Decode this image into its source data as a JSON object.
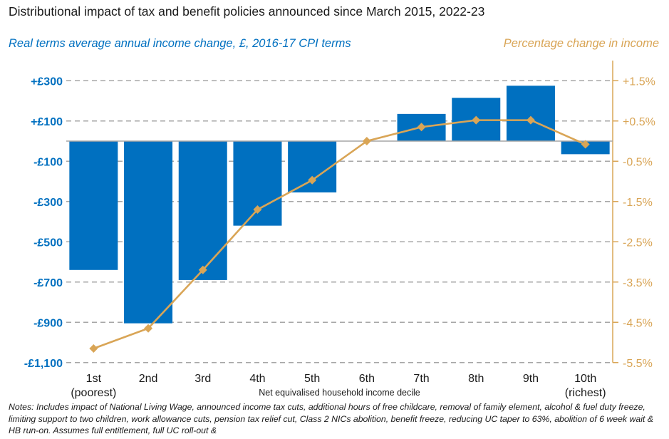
{
  "title": "Distributional impact of tax and benefit policies announced since March 2015, 2022-23",
  "left_subtitle": "Real terms average annual income change, £, 2016-17 CPI terms",
  "right_subtitle": "Percentage change in income",
  "notes": "Notes: Includes impact of National Living Wage, announced income tax cuts, additional hours of free childcare, removal of family element, alcohol & fuel duty freeze, limiting support to two children, work allowance cuts, pension tax relief cut, Class 2 NICs abolition, benefit freeze, reducing UC taper to 63%, abolition of 6 week wait & HB run-on. Assumes full entitlement, full UC roll-out &",
  "colors": {
    "bar": "#0070c0",
    "line": "#d9a556",
    "grid": "#a6a6a6",
    "zero": "#a6a6a6",
    "text": "#1a1a1a"
  },
  "chart_data": {
    "type": "bar",
    "title": "Distributional impact of tax and benefit policies announced since March 2015, 2022-23",
    "xlabel": "Net equivalised household income decile",
    "categories": [
      "1st",
      "2nd",
      "3rd",
      "4th",
      "5th",
      "6th",
      "7th",
      "8th",
      "9th",
      "10th"
    ],
    "category_sublabels": [
      "(poorest)",
      "",
      "",
      "",
      "",
      "",
      "",
      "",
      "",
      "(richest)"
    ],
    "series": [
      {
        "name": "Real terms average annual income change, £, 2016-17 CPI terms",
        "type": "bar",
        "axis": "left",
        "values": [
          -640,
          -905,
          -690,
          -420,
          -255,
          0,
          135,
          215,
          275,
          -65
        ]
      },
      {
        "name": "Percentage change in income",
        "type": "line",
        "axis": "right",
        "values": [
          -5.15,
          -4.65,
          -3.2,
          -1.7,
          -0.97,
          0.0,
          0.35,
          0.52,
          0.52,
          -0.08
        ]
      }
    ],
    "ylim_left": [
      -1100,
      400
    ],
    "ylim_right": [
      -5.5,
      2.0
    ],
    "left_ticks": [
      300,
      100,
      -100,
      -300,
      -500,
      -700,
      -900,
      -1100
    ],
    "left_tick_labels": [
      "+£300",
      "+£100",
      "-£100",
      "-£300",
      "-£500",
      "-£700",
      "-£900",
      "-£1,100"
    ],
    "right_ticks": [
      1.5,
      0.5,
      -0.5,
      -1.5,
      -2.5,
      -3.5,
      -4.5,
      -5.5
    ],
    "right_tick_labels": [
      "+1.5%",
      "+0.5%",
      "-0.5%",
      "-1.5%",
      "-2.5%",
      "-3.5%",
      "-4.5%",
      "-5.5%"
    ],
    "grid": true
  }
}
